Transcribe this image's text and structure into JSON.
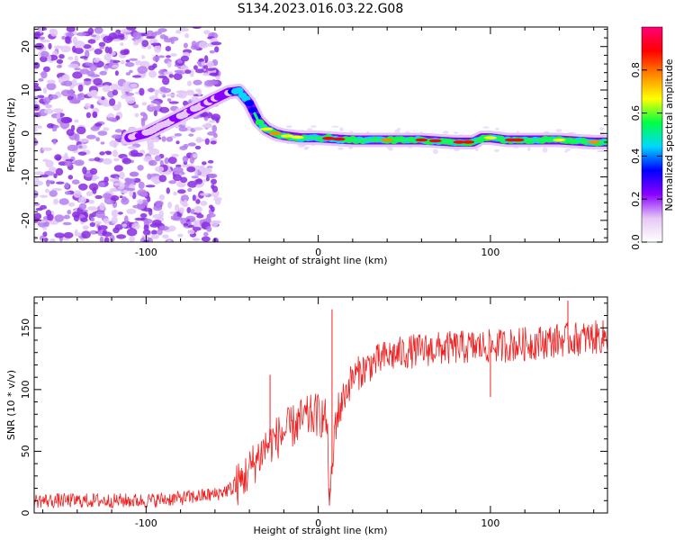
{
  "title": "S134.2023.016.03.22.G08",
  "chart_data": [
    {
      "type": "heatmap",
      "xlabel": "Height of straight line (km)",
      "ylabel": "Frequency (Hz)",
      "xlim": [
        -165,
        168
      ],
      "ylim": [
        -25,
        24.5
      ],
      "xticks": [
        -100,
        0,
        100
      ],
      "yticks": [
        -20,
        -10,
        0,
        10,
        20
      ],
      "grid": false,
      "colorbar": {
        "label": "Normalized spectral amplitude",
        "range": [
          0,
          1
        ],
        "ticks": [
          0.0,
          0.2,
          0.4,
          0.6,
          0.8
        ],
        "tick_labels": [
          "0.0",
          "0.2",
          "0.4",
          "0.6",
          "0.8"
        ],
        "colors": [
          "#ffffff",
          "#e6c8f5",
          "#8a00ff",
          "#0000ff",
          "#00d8ff",
          "#00ff44",
          "#ffff00",
          "#ff8800",
          "#ff0000",
          "#ff0077"
        ]
      },
      "ridge": {
        "x": [
          -110,
          -100,
          -90,
          -80,
          -70,
          -60,
          -52,
          -46,
          -40,
          -35,
          -30,
          -25,
          -20,
          -10,
          0,
          20,
          40,
          60,
          80,
          90,
          95,
          100,
          110,
          120,
          140,
          160,
          168
        ],
        "y": [
          -1,
          0,
          2,
          4,
          6,
          8,
          9.5,
          9.8,
          7,
          3,
          1,
          0,
          -0.5,
          -1,
          -1,
          -1.5,
          -1.5,
          -1.5,
          -2,
          -2,
          -1,
          -1,
          -1.5,
          -1.5,
          -1.5,
          -2,
          -2
        ]
      }
    },
    {
      "type": "line",
      "xlabel": "Height of straight line (km)",
      "ylabel": "SNR (10 * v/v)",
      "xlim": [
        -165,
        168
      ],
      "ylim": [
        0,
        175
      ],
      "xticks": [
        -100,
        0,
        100
      ],
      "yticks": [
        0,
        50,
        100,
        150
      ],
      "grid": false,
      "color": "#ee2222",
      "trend": {
        "x": [
          -165,
          -100,
          -80,
          -60,
          -50,
          -45,
          -40,
          -35,
          -30,
          -25,
          -20,
          -10,
          -5,
          0,
          5,
          6,
          7,
          10,
          15,
          20,
          30,
          40,
          50,
          60,
          80,
          100,
          120,
          140,
          160,
          168
        ],
        "y": [
          10,
          10,
          12,
          15,
          20,
          25,
          35,
          45,
          55,
          60,
          65,
          75,
          78,
          80,
          75,
          30,
          10,
          75,
          95,
          110,
          120,
          127,
          130,
          132,
          134,
          135,
          137,
          140,
          142,
          143
        ]
      },
      "spikes": [
        {
          "x": -28,
          "y": 112
        },
        {
          "x": 8,
          "y": 165
        },
        {
          "x": 6.5,
          "y": 6
        },
        {
          "x": 100,
          "y": 94
        },
        {
          "x": 145,
          "y": 172
        }
      ]
    }
  ]
}
